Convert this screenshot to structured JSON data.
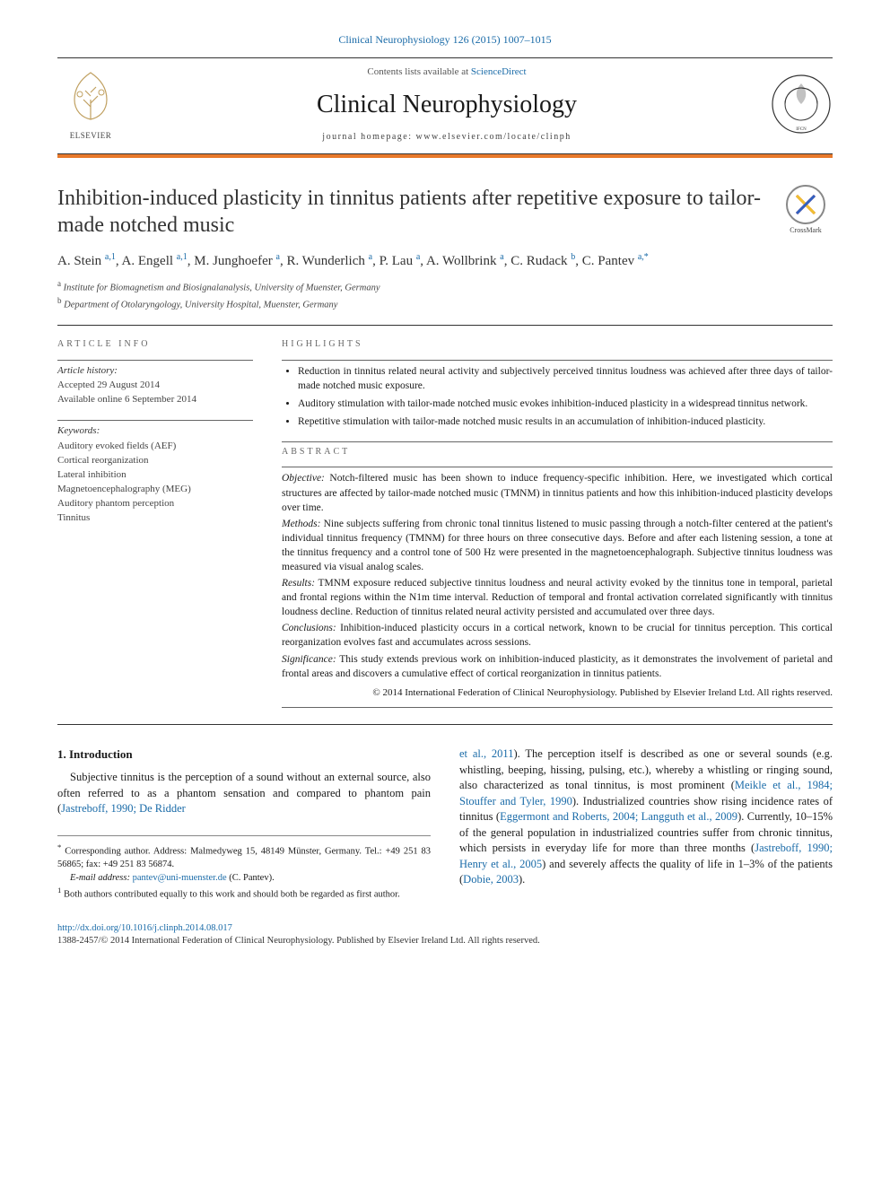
{
  "citation": "Clinical Neurophysiology 126 (2015) 1007–1015",
  "header": {
    "contents_prefix": "Contents lists available at ",
    "contents_link": "ScienceDirect",
    "journal": "Clinical Neurophysiology",
    "homepage_prefix": "journal homepage: ",
    "homepage": "www.elsevier.com/locate/clinph",
    "elsevier_label": "ELSEVIER"
  },
  "colors": {
    "accent_bar": "#e8792b",
    "link": "#1a6ba8",
    "text": "#1a1a1a"
  },
  "title": "Inhibition-induced plasticity in tinnitus patients after repetitive exposure to tailor-made notched music",
  "crossmark": "CrossMark",
  "authors_html": "A. Stein <sup>a,1</sup>, A. Engell <sup>a,1</sup>, M. Junghoefer <sup>a</sup>, R. Wunderlich <sup>a</sup>, P. Lau <sup>a</sup>, A. Wollbrink <sup>a</sup>, C. Rudack <sup>b</sup>, C. Pantev <sup>a,*</sup>",
  "affiliations": [
    {
      "sup": "a",
      "text": "Institute for Biomagnetism and Biosignalanalysis, University of Muenster, Germany"
    },
    {
      "sup": "b",
      "text": "Department of Otolaryngology, University Hospital, Muenster, Germany"
    }
  ],
  "article_info": {
    "label": "ARTICLE INFO",
    "history_label": "Article history:",
    "history": [
      "Accepted 29 August 2014",
      "Available online 6 September 2014"
    ],
    "keywords_label": "Keywords:",
    "keywords": [
      "Auditory evoked fields (AEF)",
      "Cortical reorganization",
      "Lateral inhibition",
      "Magnetoencephalography (MEG)",
      "Auditory phantom perception",
      "Tinnitus"
    ]
  },
  "highlights": {
    "label": "HIGHLIGHTS",
    "items": [
      "Reduction in tinnitus related neural activity and subjectively perceived tinnitus loudness was achieved after three days of tailor-made notched music exposure.",
      "Auditory stimulation with tailor-made notched music evokes inhibition-induced plasticity in a widespread tinnitus network.",
      "Repetitive stimulation with tailor-made notched music results in an accumulation of inhibition-induced plasticity."
    ]
  },
  "abstract": {
    "label": "ABSTRACT",
    "sections": [
      {
        "tag": "Objective:",
        "text": "Notch-filtered music has been shown to induce frequency-specific inhibition. Here, we investigated which cortical structures are affected by tailor-made notched music (TMNM) in tinnitus patients and how this inhibition-induced plasticity develops over time."
      },
      {
        "tag": "Methods:",
        "text": "Nine subjects suffering from chronic tonal tinnitus listened to music passing through a notch-filter centered at the patient's individual tinnitus frequency (TMNM) for three hours on three consecutive days. Before and after each listening session, a tone at the tinnitus frequency and a control tone of 500 Hz were presented in the magnetoencephalograph. Subjective tinnitus loudness was measured via visual analog scales."
      },
      {
        "tag": "Results:",
        "text": "TMNM exposure reduced subjective tinnitus loudness and neural activity evoked by the tinnitus tone in temporal, parietal and frontal regions within the N1m time interval. Reduction of temporal and frontal activation correlated significantly with tinnitus loudness decline. Reduction of tinnitus related neural activity persisted and accumulated over three days."
      },
      {
        "tag": "Conclusions:",
        "text": "Inhibition-induced plasticity occurs in a cortical network, known to be crucial for tinnitus perception. This cortical reorganization evolves fast and accumulates across sessions."
      },
      {
        "tag": "Significance:",
        "text": "This study extends previous work on inhibition-induced plasticity, as it demonstrates the involvement of parietal and frontal areas and discovers a cumulative effect of cortical reorganization in tinnitus patients."
      }
    ],
    "copyright": "© 2014 International Federation of Clinical Neurophysiology. Published by Elsevier Ireland Ltd. All rights reserved."
  },
  "intro": {
    "heading": "1. Introduction",
    "left_para": "Subjective tinnitus is the perception of a sound without an external source, also often referred to as a phantom sensation and compared to phantom pain (",
    "left_cite": "Jastreboff, 1990; De Ridder",
    "right_cont_cite": "et al., 2011",
    "right_para1": "). The perception itself is described as one or several sounds (e.g. whistling, beeping, hissing, pulsing, etc.), whereby a whistling or ringing sound, also characterized as tonal tinnitus, is most prominent (",
    "right_cite1": "Meikle et al., 1984; Stouffer and Tyler, 1990",
    "right_para2": "). Industrialized countries show rising incidence rates of tinnitus (",
    "right_cite2": "Eggermont and Roberts, 2004; Langguth et al., 2009",
    "right_para3": "). Currently, 10–15% of the general population in industrialized countries suffer from chronic tinnitus, which persists in everyday life for more than three months (",
    "right_cite3": "Jastreboff, 1990; Henry et al., 2005",
    "right_para4": ") and severely affects the quality of life in 1–3% of the patients (",
    "right_cite4": "Dobie, 2003",
    "right_para5": ")."
  },
  "footnotes": {
    "corr_symbol": "*",
    "corr": "Corresponding author. Address: Malmedyweg 15, 48149 Münster, Germany. Tel.: +49 251 83 56865; fax: +49 251 83 56874.",
    "email_label": "E-mail address:",
    "email": "pantev@uni-muenster.de",
    "email_name": "(C. Pantev).",
    "equal_symbol": "1",
    "equal": "Both authors contributed equally to this work and should both be regarded as first author."
  },
  "doi": {
    "url": "http://dx.doi.org/10.1016/j.clinph.2014.08.017",
    "issn_line": "1388-2457/© 2014 International Federation of Clinical Neurophysiology. Published by Elsevier Ireland Ltd. All rights reserved."
  }
}
